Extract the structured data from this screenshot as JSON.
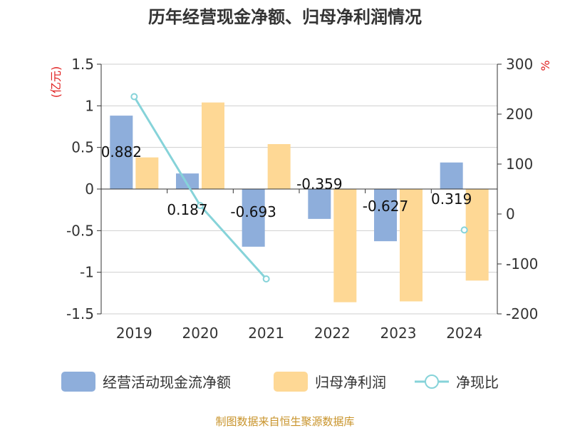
{
  "title": "历年经营现金净额、归母净利润情况",
  "source": "制图数据来自恒生聚源数据库",
  "left_axis_unit": "(亿元)",
  "right_axis_unit": "%",
  "colors": {
    "operating_cash": "#8eaedb",
    "net_profit": "#fed895",
    "ratio": "#86d3d9",
    "unit_text": "#e02020",
    "source_text": "#c8932a"
  },
  "chart_data": {
    "type": "bar",
    "categories": [
      "2019",
      "2020",
      "2021",
      "2022",
      "2023",
      "2024"
    ],
    "y_left": {
      "ylim": [
        -1.5,
        1.5
      ],
      "ticks": [
        "1.5",
        "1",
        "0.5",
        "0",
        "-0.5",
        "-1",
        "-1.5"
      ]
    },
    "y_right": {
      "ylim": [
        -200,
        300
      ],
      "ticks": [
        "300",
        "200",
        "100",
        "0",
        "-100",
        "-200"
      ]
    },
    "series": [
      {
        "name": "经营活动现金流净额",
        "type": "bar",
        "axis": "left",
        "values": [
          0.882,
          0.187,
          -0.693,
          -0.359,
          -0.627,
          0.319
        ],
        "labels": [
          "0.882",
          "0.187",
          "-0.693",
          "-0.359",
          "-0.627",
          "0.319"
        ]
      },
      {
        "name": "归母净利润",
        "type": "bar",
        "axis": "left",
        "values": [
          0.38,
          1.04,
          0.54,
          -1.36,
          -1.35,
          -1.1
        ]
      },
      {
        "name": "净现比",
        "type": "line",
        "axis": "right",
        "values": [
          235,
          17,
          -130,
          null,
          null,
          -32
        ]
      }
    ],
    "grid": true,
    "legend_position": "bottom"
  }
}
